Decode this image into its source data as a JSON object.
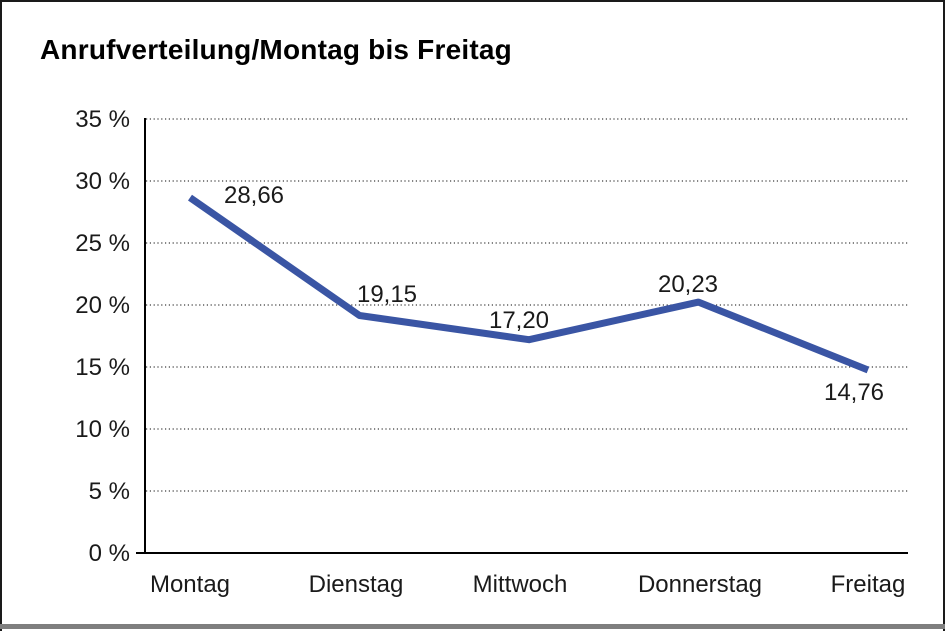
{
  "window": {
    "title": "Anrufverteilung/Montag bis Freitag"
  },
  "chart_data": {
    "type": "line",
    "title": "Anrufverteilung/Montag bis Freitag",
    "categories": [
      "Montag",
      "Dienstag",
      "Mittwoch",
      "Donnerstag",
      "Freitag"
    ],
    "values": [
      28.66,
      19.15,
      17.2,
      20.23,
      14.76
    ],
    "point_labels": [
      "28,66",
      "19,15",
      "17,20",
      "20,23",
      "14,76"
    ],
    "ytick_labels": [
      "35 %",
      "30 %",
      "25 %",
      "20 %",
      "15 %",
      "10 %",
      "5 %",
      "0 %"
    ],
    "xlabel": "",
    "ylabel": "",
    "ylim": [
      0,
      35
    ],
    "ytick_step": 5,
    "grid": "horizontal-dotted",
    "legend_position": "none",
    "line_color": "#3a55a4",
    "grid_color": "#3c3c3c",
    "axis_color": "#000000",
    "decimal_style": "comma"
  }
}
